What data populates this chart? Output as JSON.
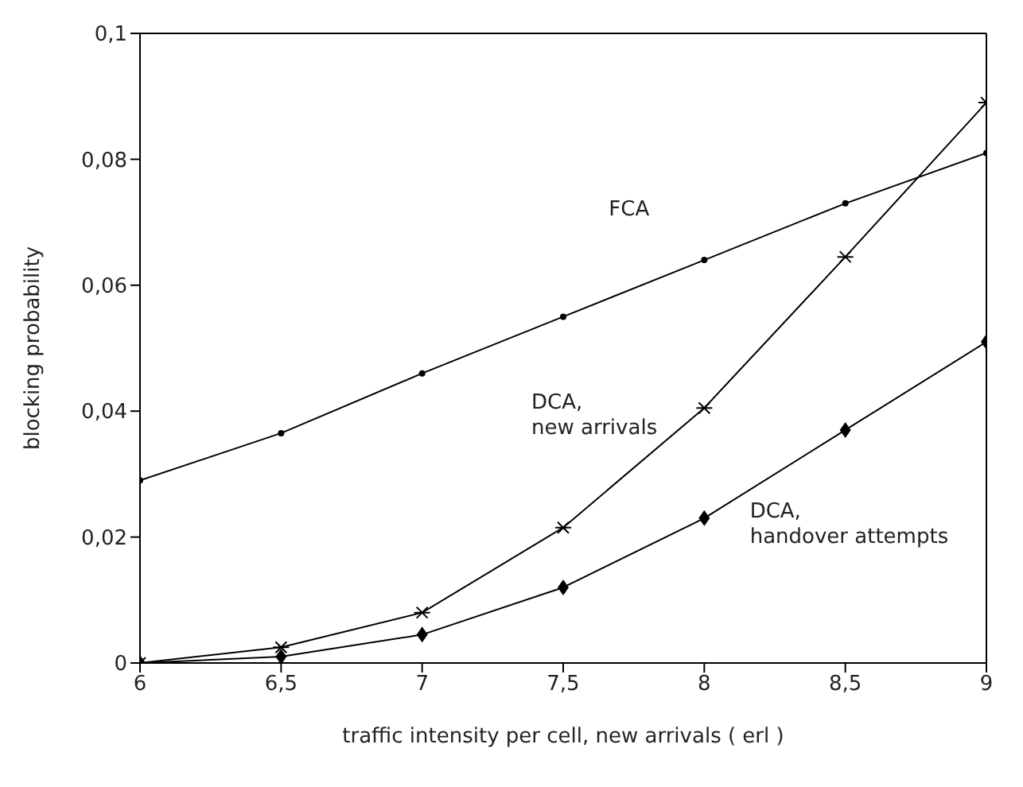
{
  "chart_data": {
    "type": "line",
    "xlabel": "traffic intensity per cell, new arrivals ( erl )",
    "ylabel": "blocking probability",
    "x": [
      6,
      6.5,
      7,
      7.5,
      8,
      8.5,
      9
    ],
    "series": [
      {
        "name": "FCA",
        "color": "#000000",
        "marker": "circle",
        "values": [
          0.029,
          0.0365,
          0.046,
          0.055,
          0.064,
          0.073,
          0.081
        ]
      },
      {
        "name": "DCA,\nnew arrivals",
        "color": "#000000",
        "marker": "cross",
        "values": [
          0,
          0.0025,
          0.008,
          0.0215,
          0.0405,
          0.0645,
          0.089
        ]
      },
      {
        "name": "DCA,\nhandover attempts",
        "color": "#000000",
        "marker": "diamond",
        "values": [
          0,
          0.001,
          0.0045,
          0.012,
          0.023,
          0.037,
          0.051
        ]
      }
    ],
    "xlim": [
      6,
      9
    ],
    "xticks": [
      6,
      {
        "value": 6.5,
        "label": "6,5"
      },
      7,
      {
        "value": 7.5,
        "label": "7,5"
      },
      8,
      {
        "value": 8.5,
        "label": "8,5"
      },
      9
    ],
    "ylim": [
      0,
      0.1
    ],
    "yticks": [
      0,
      {
        "value": 0.02,
        "label": "0,02"
      },
      {
        "value": 0.04,
        "label": "0,04"
      },
      {
        "value": 0.06,
        "label": "0,06"
      },
      {
        "value": 0.08,
        "label": "0,08"
      },
      {
        "value": 0.1,
        "label": "0,1"
      }
    ],
    "grid": false,
    "legend": false,
    "line_style": "solid"
  }
}
